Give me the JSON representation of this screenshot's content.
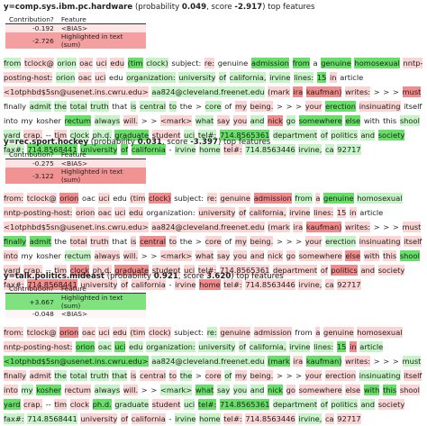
{
  "palette": {
    "G": "#66e066",
    "g": "#c6f4c6",
    "R": "#f28b8b",
    "r": "#fbd4d4"
  },
  "sections": [
    {
      "header": [
        "y=comp.sys.ibm.pc.hardware",
        " (probability ",
        "0.049",
        ", score ",
        "-2.917",
        ") top features"
      ],
      "table": {
        "columns": [
          "Contribution?",
          "Feature"
        ],
        "rows": [
          {
            "cells": [
              "-0.192",
              "<BIAS>"
            ],
            "color": "#fde6e6"
          },
          {
            "cells": [
              "-2.726",
              "Highlighted in text (sum)"
            ],
            "color": "#f4a0a0"
          }
        ]
      },
      "tokens": [
        [
          "from",
          "g"
        ],
        [
          "tclock@",
          "r"
        ],
        [
          "orion",
          "g"
        ],
        [
          "oac",
          "r"
        ],
        [
          "uci",
          "r"
        ],
        [
          "edu",
          "r"
        ],
        [
          "(tim",
          "G"
        ],
        [
          "clock)",
          "g"
        ],
        [
          "subject:"
        ],
        [
          "re:",
          "r"
        ],
        [
          "genuine"
        ],
        [
          "admission",
          "G"
        ],
        [
          "from",
          "G"
        ],
        [
          "a"
        ],
        [
          "genuine",
          "G"
        ],
        [
          "homosexual",
          "G"
        ],
        [
          "nntp-posting-host:",
          "r"
        ],
        [
          "orion",
          "g"
        ],
        [
          "oac",
          "r"
        ],
        [
          "uci",
          "r"
        ],
        [
          "edu"
        ],
        [
          "organization:",
          "g"
        ],
        [
          "university",
          "g"
        ],
        [
          "of",
          "g"
        ],
        [
          "california,",
          "g"
        ],
        [
          "irvine",
          "g"
        ],
        [
          "lines:",
          "g"
        ],
        [
          "15",
          "G"
        ],
        [
          "in",
          "r"
        ],
        [
          "article"
        ],
        [
          "<1otphbd$5sn@usenet.ins.cwru.edu>",
          "r"
        ],
        [
          "aa824@cleveland.freenet.edu",
          "g"
        ],
        [
          "(mark",
          "r"
        ],
        [
          "ira",
          "R"
        ],
        [
          "kaufman)",
          "R"
        ],
        [
          "writes:",
          "r"
        ],
        [
          "> > >"
        ],
        [
          "must",
          "R"
        ],
        [
          "finally"
        ],
        [
          "admit",
          "g"
        ],
        [
          "the",
          "g"
        ],
        [
          "total",
          "g"
        ],
        [
          "truth",
          "g"
        ],
        [
          "that"
        ],
        [
          "is",
          "g"
        ],
        [
          "central",
          "g"
        ],
        [
          "to",
          "g"
        ],
        [
          "the"
        ],
        [
          ">"
        ],
        [
          "core",
          "g"
        ],
        [
          "of"
        ],
        [
          "my",
          "r"
        ],
        [
          "being.",
          "r"
        ],
        [
          "> > >"
        ],
        [
          "your",
          "r"
        ],
        [
          "erection",
          "G"
        ],
        [
          "insinuating",
          "r"
        ],
        [
          "itself"
        ],
        [
          "into"
        ],
        [
          "my"
        ],
        [
          "kosher"
        ],
        [
          "rectum",
          "G"
        ],
        [
          "always",
          "g"
        ],
        [
          "will.",
          "r"
        ],
        [
          "> >"
        ],
        [
          "<mark>",
          "r"
        ],
        [
          "what",
          "g"
        ],
        [
          "say",
          "r"
        ],
        [
          "you",
          "r"
        ],
        [
          "and",
          "g"
        ],
        [
          "nick",
          "R"
        ],
        [
          "go",
          "g"
        ],
        [
          "somewhere",
          "G"
        ],
        [
          "else",
          "G"
        ],
        [
          "with"
        ],
        [
          "this"
        ],
        [
          "shool",
          "g"
        ],
        [
          "yard",
          "g"
        ],
        [
          "crap.",
          "r"
        ],
        [
          "--"
        ],
        [
          "tim",
          "r"
        ],
        [
          "clock",
          "g"
        ],
        [
          "ph.d.",
          "g"
        ],
        [
          "graduate",
          "G"
        ],
        [
          "student",
          "r"
        ],
        [
          "uci",
          "g"
        ],
        [
          "tel#:",
          "g"
        ],
        [
          "714.8565361",
          "G"
        ],
        [
          "department",
          "g"
        ],
        [
          "of",
          "g"
        ],
        [
          "politics",
          "g"
        ],
        [
          "and",
          "g"
        ],
        [
          "society",
          "G"
        ],
        [
          "fax#:",
          "g"
        ],
        [
          "714.8568441",
          "G"
        ],
        [
          "university",
          "G"
        ],
        [
          "of",
          "G"
        ],
        [
          "california",
          "G"
        ],
        [
          "-"
        ],
        [
          "irvine",
          "g"
        ],
        [
          "home",
          "g"
        ],
        [
          "tel#:",
          "r"
        ],
        [
          "714.8563446",
          "g"
        ],
        [
          "irvine,",
          "g"
        ],
        [
          "ca",
          "g"
        ],
        [
          "92717",
          "g"
        ]
      ]
    },
    {
      "header": [
        "y=rec.sport.hockey",
        " (probability ",
        "0.031",
        ", score ",
        "-3.397",
        ") top features"
      ],
      "table": {
        "columns": [
          "Contribution?",
          "Feature"
        ],
        "rows": [
          {
            "cells": [
              "-0.275",
              "<BIAS>"
            ],
            "color": "#fde3e3"
          },
          {
            "cells": [
              "-3.122",
              "Highlighted in text (sum)"
            ],
            "color": "#f29393"
          }
        ]
      },
      "tokens": [
        [
          "from:",
          "r"
        ],
        [
          "tclock@",
          "r"
        ],
        [
          "orion",
          "R"
        ],
        [
          "oac"
        ],
        [
          "uci",
          "r"
        ],
        [
          "edu"
        ],
        [
          "(tim",
          "r"
        ],
        [
          "clock)",
          "R"
        ],
        [
          "subject:"
        ],
        [
          "re:",
          "r"
        ],
        [
          "genuine",
          "r"
        ],
        [
          "admission",
          "R"
        ],
        [
          "from",
          "g"
        ],
        [
          "a",
          "r"
        ],
        [
          "genuine",
          "G"
        ],
        [
          "homosexual",
          "g"
        ],
        [
          "nntp-posting-host:",
          "r"
        ],
        [
          "orion",
          "r"
        ],
        [
          "oac",
          "r"
        ],
        [
          "uci",
          "r"
        ],
        [
          "edu",
          "r"
        ],
        [
          "organization:"
        ],
        [
          "university",
          "r"
        ],
        [
          "of",
          "r"
        ],
        [
          "california,",
          "r"
        ],
        [
          "irvine",
          "r"
        ],
        [
          "lines:",
          "r"
        ],
        [
          "15",
          "r"
        ],
        [
          "in",
          "r"
        ],
        [
          "article"
        ],
        [
          "<1otphbd$5sn@usenet.ins.cwru.edu>",
          "r"
        ],
        [
          "aa824@cleveland.freenet.edu",
          "r"
        ],
        [
          "(mark",
          "r"
        ],
        [
          "ira",
          "r"
        ],
        [
          "kaufman)",
          "R"
        ],
        [
          "writes:",
          "r"
        ],
        [
          "> > >"
        ],
        [
          "must",
          "r"
        ],
        [
          "finally",
          "G"
        ],
        [
          "admit",
          "G"
        ],
        [
          "the"
        ],
        [
          "total",
          "r"
        ],
        [
          "truth",
          "r"
        ],
        [
          "that"
        ],
        [
          "is",
          "r"
        ],
        [
          "central",
          "R"
        ],
        [
          "to",
          "r"
        ],
        [
          "the"
        ],
        [
          ">"
        ],
        [
          "core",
          "r"
        ],
        [
          "of"
        ],
        [
          "my",
          "r"
        ],
        [
          "being.",
          "r"
        ],
        [
          "> > >"
        ],
        [
          "your",
          "r"
        ],
        [
          "erection",
          "g"
        ],
        [
          "insinuating",
          "r"
        ],
        [
          "itself",
          "r"
        ],
        [
          "into",
          "r"
        ],
        [
          "my"
        ],
        [
          "kosher"
        ],
        [
          "rectum",
          "g"
        ],
        [
          "always",
          "r"
        ],
        [
          "will.",
          "r"
        ],
        [
          "> >"
        ],
        [
          "<mark>",
          "r"
        ],
        [
          "what",
          "r"
        ],
        [
          "say",
          "r"
        ],
        [
          "you",
          "r"
        ],
        [
          "and",
          "r"
        ],
        [
          "nick",
          "r"
        ],
        [
          "go",
          "r"
        ],
        [
          "somewhere",
          "r"
        ],
        [
          "else",
          "R"
        ],
        [
          "with",
          "r"
        ],
        [
          "this",
          "r"
        ],
        [
          "shool",
          "G"
        ],
        [
          "yard",
          "r"
        ],
        [
          "crap.",
          "r"
        ],
        [
          "--"
        ],
        [
          "tim",
          "r"
        ],
        [
          "clock",
          "R"
        ],
        [
          "ph.d.",
          "r"
        ],
        [
          "graduate",
          "R"
        ],
        [
          "student",
          "r"
        ],
        [
          "uci",
          "r"
        ],
        [
          "tel#:",
          "r"
        ],
        [
          "714.8565361",
          "r"
        ],
        [
          "department",
          "r"
        ],
        [
          "of",
          "r"
        ],
        [
          "politics",
          "R"
        ],
        [
          "and",
          "r"
        ],
        [
          "society",
          "r"
        ],
        [
          "fax#:",
          "r"
        ],
        [
          "714.8568441",
          "R"
        ],
        [
          "university",
          "r"
        ],
        [
          "of",
          "r"
        ],
        [
          "california",
          "r"
        ],
        [
          "-"
        ],
        [
          "irvine",
          "r"
        ],
        [
          "home",
          "R"
        ],
        [
          "tel#:",
          "r"
        ],
        [
          "714.8563446",
          "r"
        ],
        [
          "irvine,",
          "r"
        ],
        [
          "ca",
          "r"
        ],
        [
          "92717",
          "r"
        ]
      ]
    },
    {
      "header": [
        "y=talk.politics.mideast",
        " (probability ",
        "0.921",
        ", score ",
        "3.620",
        ") top features"
      ],
      "table": {
        "columns": [
          "Contribution?",
          "Feature"
        ],
        "rows": [
          {
            "cells": [
              "+3.667",
              "Highlighted in text (sum)"
            ],
            "color": "#7fe27f"
          },
          {
            "cells": [
              "-0.048",
              "<BIAS>"
            ],
            "color": "#fef6f6"
          }
        ]
      },
      "tokens": [
        [
          "from:",
          "r"
        ],
        [
          "tclock@",
          "r"
        ],
        [
          "orion",
          "R"
        ],
        [
          "oac",
          "r"
        ],
        [
          "uci",
          "r"
        ],
        [
          "edu",
          "r"
        ],
        [
          "(tim",
          "r"
        ],
        [
          "clock)",
          "r"
        ],
        [
          "subject:"
        ],
        [
          "re:",
          "g"
        ],
        [
          "genuine",
          "r"
        ],
        [
          "admission",
          "r"
        ],
        [
          "from"
        ],
        [
          "a",
          "r"
        ],
        [
          "genuine",
          "r"
        ],
        [
          "homosexual",
          "r"
        ],
        [
          "nntp-posting-host:",
          "r"
        ],
        [
          "orion",
          "G"
        ],
        [
          "oac",
          "g"
        ],
        [
          "uci",
          "G"
        ],
        [
          "edu",
          "g"
        ],
        [
          "organization:",
          "g"
        ],
        [
          "university",
          "g"
        ],
        [
          "of",
          "g"
        ],
        [
          "california,",
          "g"
        ],
        [
          "irvine",
          "g"
        ],
        [
          "lines:",
          "g"
        ],
        [
          "15",
          "G"
        ],
        [
          "in",
          "R"
        ],
        [
          "article",
          "g"
        ],
        [
          "<1otphbd$5sn@usenet.ins.cwru.edu>",
          "G"
        ],
        [
          "aa824@cleveland.freenet.edu",
          "g"
        ],
        [
          "(mark",
          "G"
        ],
        [
          "ira",
          "r"
        ],
        [
          "kaufman)",
          "G"
        ],
        [
          "writes:",
          "r"
        ],
        [
          "> > >"
        ],
        [
          "must",
          "g"
        ],
        [
          "finally",
          "r"
        ],
        [
          "admit",
          "r"
        ],
        [
          "the",
          "g"
        ],
        [
          "total",
          "g"
        ],
        [
          "truth",
          "g"
        ],
        [
          "that",
          "g"
        ],
        [
          "is",
          "r"
        ],
        [
          "central",
          "r"
        ],
        [
          "to",
          "r"
        ],
        [
          "the",
          "g"
        ],
        [
          ">"
        ],
        [
          "core",
          "r"
        ],
        [
          "of",
          "g"
        ],
        [
          "my",
          "r"
        ],
        [
          "being.",
          "r"
        ],
        [
          "> > >"
        ],
        [
          "your",
          "r"
        ],
        [
          "erection",
          "r"
        ],
        [
          "insinuating",
          "g"
        ],
        [
          "itself",
          "r"
        ],
        [
          "into",
          "r"
        ],
        [
          "my",
          "g"
        ],
        [
          "kosher",
          "G"
        ],
        [
          "rectum",
          "r"
        ],
        [
          "always",
          "g"
        ],
        [
          "will.",
          "r"
        ],
        [
          "> >"
        ],
        [
          "<mark>",
          "g"
        ],
        [
          "what",
          "G"
        ],
        [
          "say",
          "g"
        ],
        [
          "you",
          "g"
        ],
        [
          "and",
          "g"
        ],
        [
          "nick",
          "G"
        ],
        [
          "go",
          "r"
        ],
        [
          "somewhere",
          "r"
        ],
        [
          "else",
          "r"
        ],
        [
          "with",
          "G"
        ],
        [
          "this",
          "G"
        ],
        [
          "shool",
          "r"
        ],
        [
          "yard",
          "G"
        ],
        [
          "crap.",
          "r"
        ],
        [
          "--"
        ],
        [
          "tim",
          "r"
        ],
        [
          "clock",
          "r"
        ],
        [
          "ph.d.",
          "G"
        ],
        [
          "graduate",
          "g"
        ],
        [
          "student",
          "r"
        ],
        [
          "uci",
          "g"
        ],
        [
          "tel#:",
          "G"
        ],
        [
          "714.8565361",
          "G"
        ],
        [
          "department",
          "g"
        ],
        [
          "of",
          "g"
        ],
        [
          "politics",
          "g"
        ],
        [
          "and",
          "g"
        ],
        [
          "society",
          "r"
        ],
        [
          "fax#:",
          "g"
        ],
        [
          "714.8568441",
          "g"
        ],
        [
          "university",
          "r"
        ],
        [
          "of",
          "r"
        ],
        [
          "california",
          "r"
        ],
        [
          "-"
        ],
        [
          "irvine",
          "g"
        ],
        [
          "home",
          "g"
        ],
        [
          "tel#:",
          "r"
        ],
        [
          "714.8563446",
          "r"
        ],
        [
          "irvine,",
          "g"
        ],
        [
          "ca",
          "r"
        ],
        [
          "92717",
          "r"
        ]
      ]
    }
  ]
}
